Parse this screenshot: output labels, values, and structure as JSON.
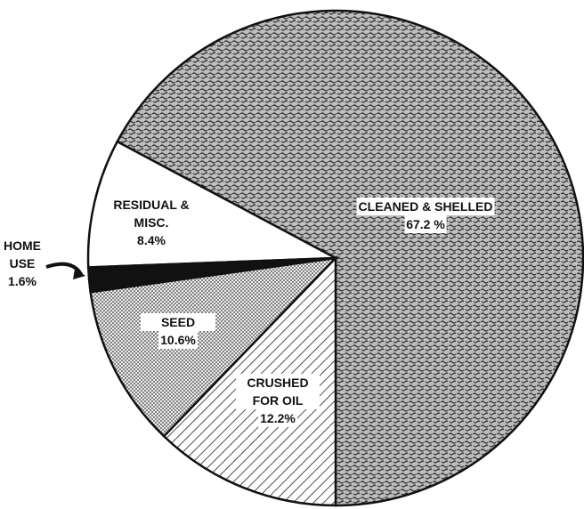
{
  "chart_data": {
    "type": "pie",
    "categories": [
      "CLEANED & SHELLED",
      "RESIDUAL & MISC.",
      "HOME USE",
      "SEED",
      "CRUSHED FOR OIL"
    ],
    "values": [
      67.2,
      8.4,
      1.6,
      10.6,
      12.2
    ],
    "value_labels": [
      "67.2 %",
      "8.4%",
      "1.6%",
      "10.6%",
      "12.2%"
    ],
    "patterns": [
      "stipple",
      "white",
      "black",
      "dots",
      "hatch"
    ]
  }
}
